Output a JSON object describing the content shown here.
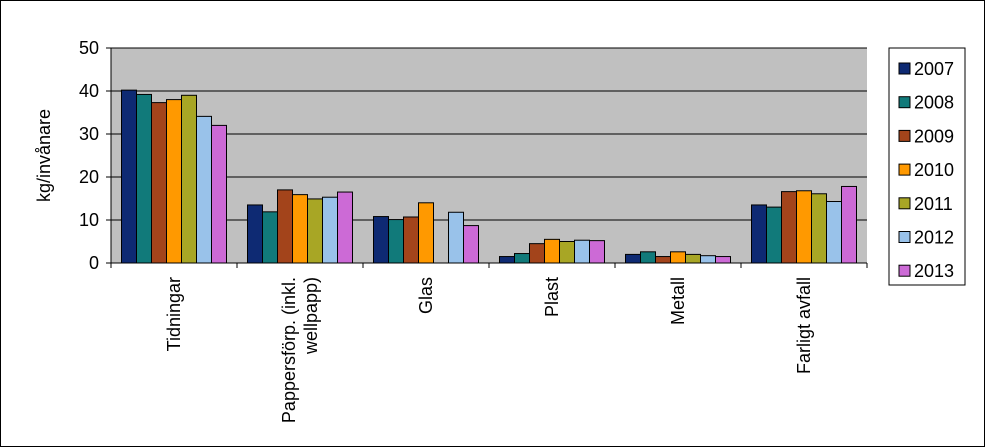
{
  "chart_data": {
    "type": "bar",
    "title": "",
    "xlabel": "",
    "ylabel": "kg/invånare",
    "ylim": [
      0,
      50
    ],
    "yticks": [
      0,
      10,
      20,
      30,
      40,
      50
    ],
    "grid": true,
    "legend_position": "right",
    "categories": [
      [
        "Tidningar"
      ],
      [
        "Pappersförp. (inkl.",
        "wellpapp)"
      ],
      [
        "Glas"
      ],
      [
        "Plast"
      ],
      [
        "Metall"
      ],
      [
        "Farligt avfall"
      ]
    ],
    "series": [
      {
        "name": "2007",
        "color": "#0e2a73",
        "values": [
          40.2,
          13.5,
          10.8,
          1.5,
          2.0,
          13.5
        ]
      },
      {
        "name": "2008",
        "color": "#117a7a",
        "values": [
          39.2,
          11.9,
          10.1,
          2.2,
          2.6,
          13.0
        ]
      },
      {
        "name": "2009",
        "color": "#a3441b",
        "values": [
          37.3,
          17.0,
          10.7,
          4.5,
          1.5,
          16.6
        ]
      },
      {
        "name": "2010",
        "color": "#ff9900",
        "values": [
          38.0,
          15.9,
          14.0,
          5.5,
          2.6,
          16.8
        ]
      },
      {
        "name": "2011",
        "color": "#a8a625",
        "values": [
          39.0,
          14.9,
          null,
          5.0,
          2.0,
          16.1
        ]
      },
      {
        "name": "2012",
        "color": "#99c2ea",
        "values": [
          34.1,
          15.3,
          11.8,
          5.3,
          1.7,
          14.3
        ]
      },
      {
        "name": "2013",
        "color": "#cc6ad6",
        "values": [
          32.0,
          16.5,
          8.7,
          5.2,
          1.5,
          17.8
        ]
      }
    ]
  }
}
